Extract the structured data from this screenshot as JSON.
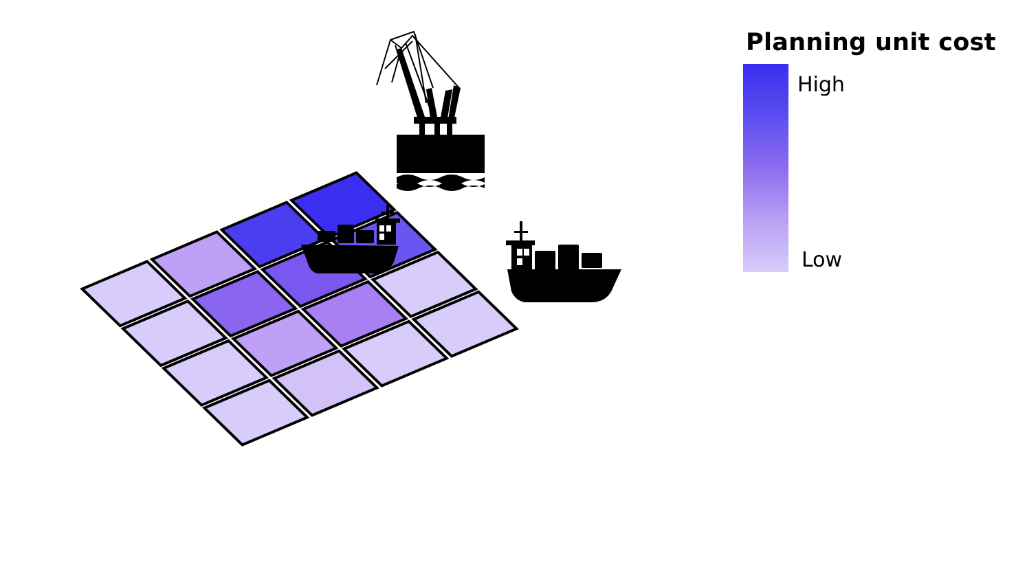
{
  "legend": {
    "title": "Planning unit cost",
    "high_label": "High",
    "low_label": "Low",
    "gradient": [
      "#3a2ef0",
      "#5b4ef0",
      "#8e6cf0",
      "#b8a0f4",
      "#d8ccfa"
    ]
  },
  "grid": {
    "rows": 4,
    "cols": 4,
    "cells": [
      {
        "row": 0,
        "col": 0,
        "color": "#3a2ef0",
        "cost": "very-high"
      },
      {
        "row": 0,
        "col": 1,
        "color": "#6a55f2",
        "cost": "high"
      },
      {
        "row": 0,
        "col": 2,
        "color": "#d8ccfa",
        "cost": "low"
      },
      {
        "row": 0,
        "col": 3,
        "color": "#d8ccfa",
        "cost": "low"
      },
      {
        "row": 1,
        "col": 0,
        "color": "#4a3ef0",
        "cost": "high"
      },
      {
        "row": 1,
        "col": 1,
        "color": "#7a58ef",
        "cost": "medium-high"
      },
      {
        "row": 1,
        "col": 2,
        "color": "#a880f4",
        "cost": "medium"
      },
      {
        "row": 1,
        "col": 3,
        "color": "#d8ccfa",
        "cost": "low"
      },
      {
        "row": 2,
        "col": 0,
        "color": "#bfa0f7",
        "cost": "medium-low"
      },
      {
        "row": 2,
        "col": 1,
        "color": "#8a65f0",
        "cost": "medium-high"
      },
      {
        "row": 2,
        "col": 2,
        "color": "#bfa0f7",
        "cost": "medium-low"
      },
      {
        "row": 2,
        "col": 3,
        "color": "#d2c2f8",
        "cost": "low"
      },
      {
        "row": 3,
        "col": 0,
        "color": "#d8ccfa",
        "cost": "low"
      },
      {
        "row": 3,
        "col": 1,
        "color": "#d8ccfa",
        "cost": "low"
      },
      {
        "row": 3,
        "col": 2,
        "color": "#d8ccfa",
        "cost": "low"
      },
      {
        "row": 3,
        "col": 3,
        "color": "#d8ccfa",
        "cost": "low"
      }
    ]
  },
  "icons": [
    "harbor-crane-icon",
    "cargo-ship-icon",
    "cargo-ship-icon"
  ],
  "stroke_color": "#000000"
}
